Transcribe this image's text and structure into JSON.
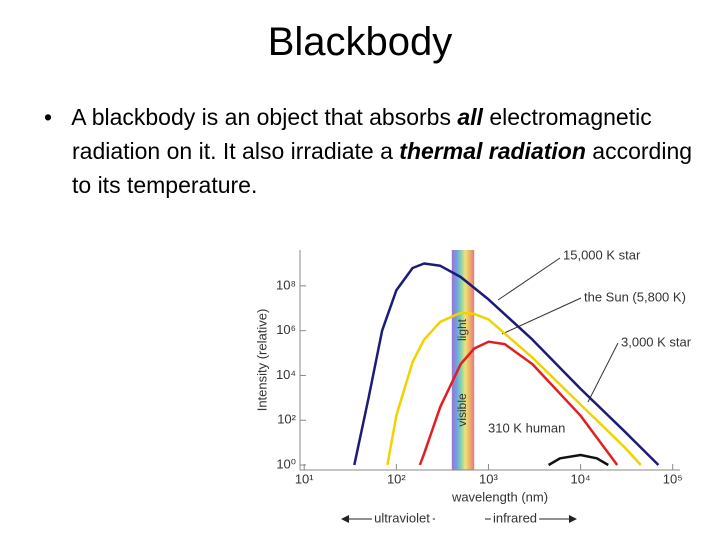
{
  "slide": {
    "title": "Blackbody",
    "bullet": [
      "A blackbody is an object that absorbs ",
      "all",
      " electromagnetic radiation on it. It also irradiate a ",
      "thermal radiation",
      " according to its temperature."
    ]
  },
  "chart_data": {
    "type": "line",
    "x_log": true,
    "y_log": true,
    "xlabel": "wavelength (nm)",
    "ylabel": "Intensity (relative)",
    "xlim": [
      9,
      120000
    ],
    "ylim": [
      0.6,
      4000000000
    ],
    "xticks": [
      {
        "value": 10,
        "label": "10¹"
      },
      {
        "value": 100,
        "label": "10²"
      },
      {
        "value": 1000,
        "label": "10³"
      },
      {
        "value": 10000,
        "label": "10⁴"
      },
      {
        "value": 100000,
        "label": "10⁵"
      }
    ],
    "yticks": [
      {
        "value": 1,
        "label": "10⁰"
      },
      {
        "value": 100,
        "label": "10²"
      },
      {
        "value": 10000,
        "label": "10⁴"
      },
      {
        "value": 1000000,
        "label": "10⁶"
      },
      {
        "value": 100000000,
        "label": "10⁸"
      }
    ],
    "visible_band": [
      400,
      700
    ],
    "visible_labels": [
      "visible",
      "light"
    ],
    "ultraviolet_label": "ultraviolet",
    "infrared_label": "infrared",
    "series": [
      {
        "name": "15,000 K star",
        "color": "#1c1c78",
        "x": [
          35,
          50,
          70,
          100,
          150,
          200,
          300,
          500,
          1000,
          3000,
          10000,
          30000,
          70000
        ],
        "values": [
          1,
          1000,
          1000000,
          63000000,
          630000000,
          1000000000,
          790000000,
          250000000,
          25000000,
          400000,
          2500,
          32,
          1
        ]
      },
      {
        "name": "the Sun (5,800 K)",
        "color": "#f2d200",
        "x": [
          80,
          100,
          150,
          200,
          300,
          500,
          700,
          1000,
          3000,
          10000,
          30000,
          45000
        ],
        "values": [
          1,
          160,
          40000,
          400000,
          2500000,
          6300000,
          5600000,
          3200000,
          63000,
          500,
          6.3,
          1
        ]
      },
      {
        "name": "3,000 K star",
        "color": "#e02020",
        "x": [
          180,
          200,
          300,
          500,
          700,
          1000,
          1500,
          3000,
          10000,
          25000
        ],
        "values": [
          1,
          3.2,
          400,
          32000,
          160000,
          320000,
          250000,
          32000,
          160,
          1
        ]
      },
      {
        "name": "310 K human",
        "color": "#111111",
        "x": [
          4500,
          6000,
          10000,
          15000,
          20000
        ],
        "values": [
          1,
          2,
          2.8,
          2,
          1
        ]
      }
    ]
  }
}
